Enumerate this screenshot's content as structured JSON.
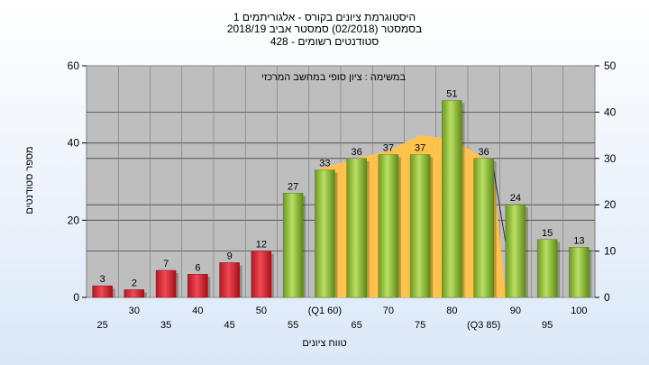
{
  "chart_data": {
    "type": "bar",
    "title_lines": [
      "היסטוגרמת ציונים בקורס - אלגוריתמים 1",
      "בסמסטר  (02/2018)  סמסטר אביב 2018/19",
      "סטודנטים רשומים - 428"
    ],
    "subtitle": "במשימה : ציון סופי במחשב המרכזי",
    "xlabel": "טווח ציונים",
    "ylabel": "מספר סטודנטים",
    "categories": [
      "25",
      "30",
      "35",
      "40",
      "45",
      "50",
      "55",
      "(Q1 60)",
      "65",
      "70",
      "75",
      "80",
      "(Q3 85)",
      "90",
      "95",
      "100"
    ],
    "values": [
      3,
      2,
      7,
      6,
      9,
      12,
      27,
      33,
      36,
      37,
      37,
      51,
      36,
      24,
      15,
      13
    ],
    "bar_colors": [
      "red",
      "red",
      "red",
      "red",
      "red",
      "red",
      "green",
      "green",
      "green",
      "green",
      "green",
      "green",
      "green",
      "green",
      "green",
      "green"
    ],
    "background_area": {
      "description_note": null,
      "values": [
        33,
        36,
        38,
        42,
        41,
        36
      ],
      "from_category": 7,
      "color": "#ffc34d"
    },
    "left_axis": {
      "ylim": [
        0,
        60
      ],
      "ticks": [
        0,
        20,
        40,
        60
      ]
    },
    "right_axis": {
      "ylim": [
        0,
        50
      ],
      "ticks": [
        0,
        10,
        20,
        30,
        40,
        50
      ]
    },
    "grid": true,
    "colors": {
      "red_bar": "#e8283a",
      "green_bar": "#9acd3c",
      "plot_bg": "#bebebe",
      "area": "#ffc34d"
    }
  }
}
